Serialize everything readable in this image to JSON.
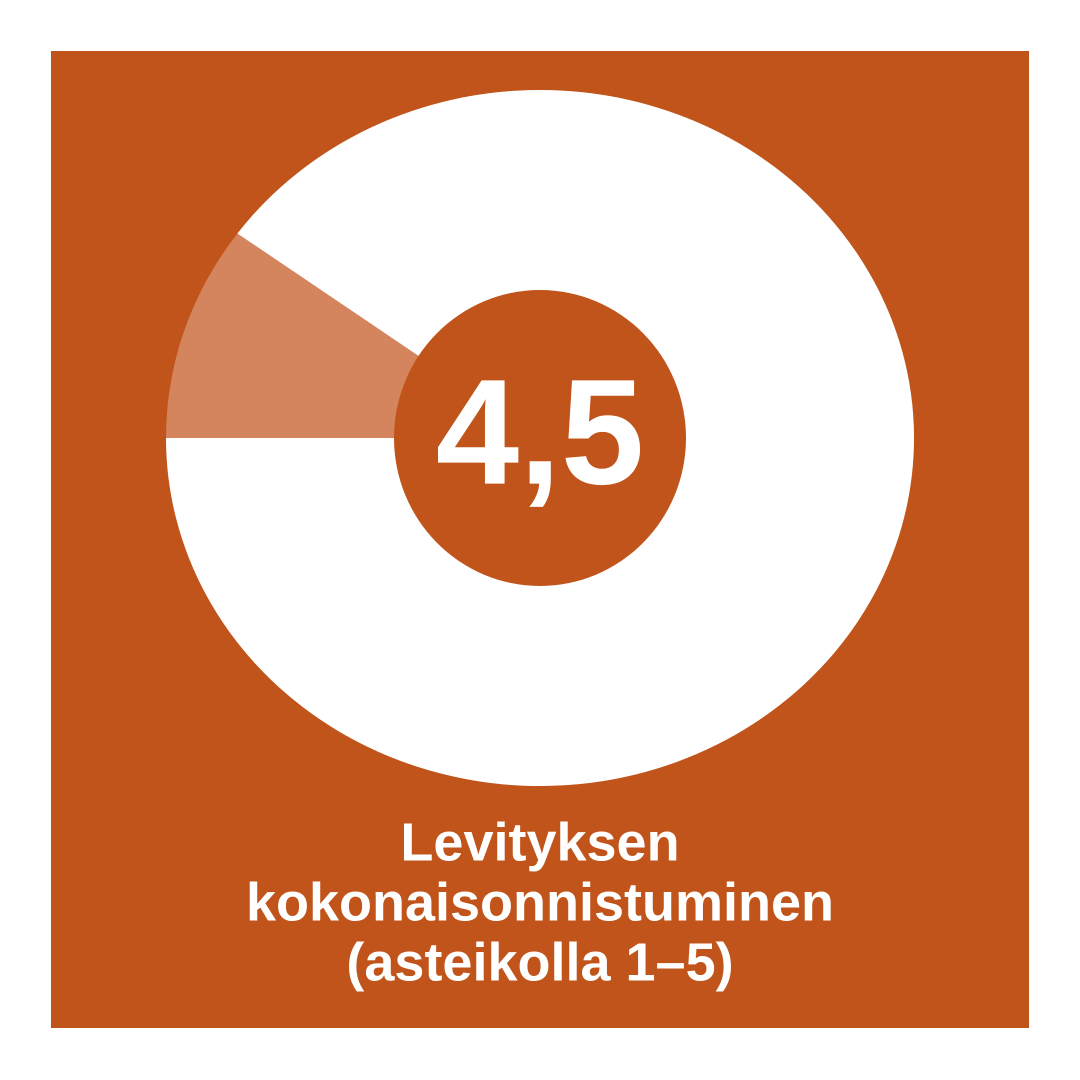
{
  "chart_data": {
    "type": "donut",
    "title": [
      "Levityksen",
      "kokonaisonnistuminen",
      "(asteikolla 1–5)"
    ],
    "values": [
      4.5
    ],
    "value_labels": [
      "4,5"
    ],
    "ylim": [
      0,
      5
    ],
    "color": "#ffffff",
    "track_color": "#d4855e",
    "background": "#c1541a"
  }
}
